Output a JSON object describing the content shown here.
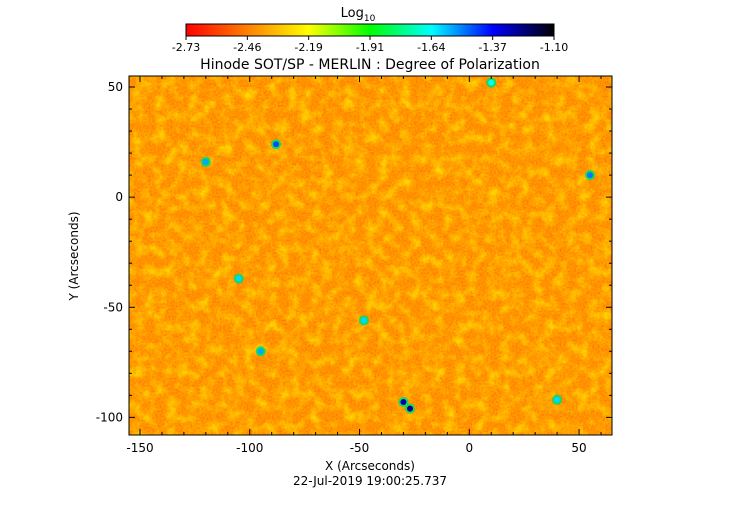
{
  "chart_data": {
    "type": "heatmap",
    "title": "Hinode SOT/SP - MERLIN : Degree of Polarization",
    "subtitle": "22-Jul-2019 19:00:25.737",
    "xlabel": "X (Arcseconds)",
    "ylabel": "Y (Arcseconds)",
    "xlim": [
      -155,
      65
    ],
    "ylim": [
      -108,
      55
    ],
    "x_ticks": [
      -150,
      -100,
      -50,
      0,
      50
    ],
    "y_ticks": [
      50,
      0,
      -50,
      -100
    ],
    "colorbar": {
      "label": "Log",
      "label_subscript": "10",
      "min": -2.73,
      "max": -1.1,
      "ticks": [
        "-2.73",
        "-2.46",
        "-2.19",
        "-1.91",
        "-1.64",
        "-1.37",
        "-1.10"
      ],
      "colors": [
        "#ff0000",
        "#ff8000",
        "#ffff00",
        "#00ff00",
        "#00ffff",
        "#0000ff",
        "#000000"
      ]
    },
    "features": [
      {
        "x": -30,
        "y": -93,
        "value": -1.3
      },
      {
        "x": -27,
        "y": -96,
        "value": -1.25
      },
      {
        "x": -88,
        "y": 24,
        "value": -1.45
      },
      {
        "x": -120,
        "y": 16,
        "value": -1.55
      },
      {
        "x": -105,
        "y": -37,
        "value": -1.6
      },
      {
        "x": -95,
        "y": -70,
        "value": -1.55
      },
      {
        "x": -48,
        "y": -56,
        "value": -1.6
      },
      {
        "x": 55,
        "y": 10,
        "value": -1.5
      },
      {
        "x": 40,
        "y": -92,
        "value": -1.6
      },
      {
        "x": 10,
        "y": 52,
        "value": -1.65
      }
    ]
  }
}
